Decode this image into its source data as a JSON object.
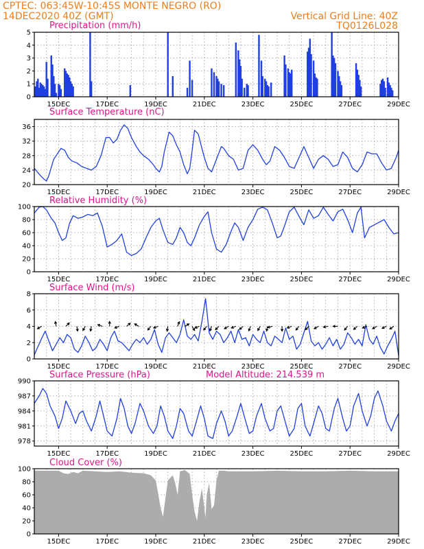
{
  "header": {
    "left_line1": "CPTEC:   063:45W-10:45S   MONTE NEGRO (RO)",
    "left_line2": "14DEC2020 40Z (GMT)",
    "right_line1": "Vertical Grid Line: 40Z",
    "right_line2": "TQ0126L028"
  },
  "colors": {
    "line": "#1f3fe0",
    "bar": "#1f3fe0",
    "cloud": "#acacac",
    "arrows": "#000000",
    "title": "#e0148c",
    "header": "#ef7d1a"
  },
  "x_axis": {
    "type": "time",
    "start": "14DEC2020 00Z",
    "end": "29DEC2020 00Z",
    "ticks": [
      {
        "day": 1,
        "label": "15DEC"
      },
      {
        "day": 3,
        "label": "17DEC"
      },
      {
        "day": 5,
        "label": "19DEC"
      },
      {
        "day": 7,
        "label": "21DEC"
      },
      {
        "day": 9,
        "label": "23DEC"
      },
      {
        "day": 11,
        "label": "25DEC"
      },
      {
        "day": 13,
        "label": "27DEC"
      },
      {
        "day": 15,
        "label": "29DEC"
      }
    ],
    "vertical_grid": "dashed, every 12 h"
  },
  "chart_data": [
    {
      "type": "bar",
      "title": "Precipitation (mm/h)",
      "ylim": [
        0,
        5
      ],
      "yticks": [
        "0",
        "1",
        "2",
        "3",
        "4",
        "5"
      ],
      "x_unit": "days since 14DEC2020 00Z",
      "x": [
        0.05,
        0.1,
        0.15,
        0.2,
        0.25,
        0.3,
        0.35,
        0.4,
        0.45,
        0.5,
        0.55,
        0.7,
        0.75,
        0.8,
        0.85,
        0.9,
        1.0,
        1.05,
        1.1,
        1.25,
        1.3,
        1.35,
        1.4,
        1.45,
        1.5,
        1.55,
        1.6,
        2.3,
        2.35,
        3.95,
        5.5,
        5.7,
        6.3,
        6.4,
        6.5,
        7.3,
        7.4,
        7.5,
        7.55,
        7.6,
        7.7,
        7.8,
        8.3,
        8.4,
        8.45,
        8.5,
        8.55,
        8.65,
        8.75,
        8.8,
        9.25,
        9.35,
        9.4,
        9.5,
        9.55,
        9.6,
        9.65,
        9.75,
        10.3,
        10.35,
        10.45,
        10.5,
        10.55,
        10.6,
        11.25,
        11.3,
        11.35,
        11.4,
        11.5,
        11.55,
        11.6,
        11.65,
        12.25,
        12.3,
        12.35,
        12.4,
        12.5,
        12.55,
        12.6,
        12.65,
        13.25,
        13.3,
        13.35,
        13.4,
        13.45,
        14.25,
        14.3,
        14.35,
        14.4,
        14.45,
        14.55,
        14.6,
        14.65,
        14.7,
        14.75
      ],
      "values": [
        0.8,
        1.2,
        1.4,
        0.7,
        1.1,
        1.0,
        0.9,
        0.8,
        0.6,
        2.7,
        1.4,
        3.2,
        2.5,
        1.6,
        1.0,
        0.3,
        1.0,
        0.9,
        0.6,
        2.2,
        2.0,
        1.8,
        1.7,
        1.5,
        1.2,
        1.0,
        0.8,
        5.0,
        1.2,
        0.9,
        5.0,
        1.6,
        0.7,
        2.8,
        1.3,
        2.2,
        1.9,
        1.6,
        1.4,
        1.2,
        1.0,
        0.9,
        4.2,
        3.6,
        2.9,
        2.4,
        1.4,
        0.7,
        1.0,
        0.9,
        4.8,
        2.8,
        1.6,
        1.4,
        1.2,
        0.9,
        0.8,
        1.1,
        3.2,
        2.5,
        2.2,
        1.9,
        1.8,
        2.1,
        3.5,
        3.8,
        4.5,
        3.3,
        2.8,
        1.8,
        1.5,
        1.4,
        5.0,
        3.2,
        3.0,
        2.6,
        2.0,
        1.6,
        1.2,
        0.9,
        2.6,
        2.1,
        1.7,
        1.3,
        0.8,
        1.0,
        1.3,
        1.4,
        1.2,
        0.7,
        1.5,
        1.1,
        0.9,
        0.7,
        0.5
      ]
    },
    {
      "type": "line",
      "title": "Surface Temperature (nC)",
      "ylim": [
        20,
        38
      ],
      "yticks": [
        "20",
        "24",
        "28",
        "32",
        "36"
      ],
      "x_unit": "days since 14DEC2020 00Z",
      "x": [
        0.0,
        0.25,
        0.4,
        0.5,
        0.6,
        0.8,
        1.1,
        1.25,
        1.4,
        1.55,
        1.75,
        1.95,
        2.15,
        2.35,
        2.55,
        2.75,
        2.95,
        3.1,
        3.25,
        3.4,
        3.55,
        3.7,
        3.85,
        4.0,
        4.2,
        4.35,
        4.5,
        4.7,
        4.9,
        5.0,
        5.15,
        5.25,
        5.35,
        5.55,
        5.7,
        5.85,
        6.0,
        6.15,
        6.3,
        6.4,
        6.5,
        6.6,
        6.75,
        6.9,
        7.0,
        7.15,
        7.3,
        7.5,
        7.7,
        7.8,
        8.0,
        8.2,
        8.4,
        8.6,
        8.8,
        9.0,
        9.2,
        9.4,
        9.55,
        9.7,
        9.9,
        10.1,
        10.3,
        10.5,
        10.7,
        10.9,
        11.1,
        11.3,
        11.5,
        11.7,
        11.9,
        12.1,
        12.3,
        12.5,
        12.7,
        12.9,
        13.1,
        13.3,
        13.5,
        13.7,
        13.9,
        14.1,
        14.3,
        14.5,
        14.7,
        14.9,
        15.0
      ],
      "values": [
        24.5,
        22.5,
        21.5,
        21.0,
        22.5,
        27.0,
        30.0,
        29.5,
        27.5,
        26.5,
        26.0,
        25.0,
        24.5,
        24.0,
        25.0,
        28.0,
        33.0,
        33.0,
        31.5,
        32.5,
        35.0,
        36.5,
        35.5,
        33.0,
        30.5,
        29.0,
        28.0,
        27.0,
        25.5,
        24.5,
        23.5,
        25.0,
        29.0,
        34.5,
        33.5,
        31.0,
        29.0,
        25.5,
        23.0,
        24.5,
        29.5,
        35.0,
        34.0,
        30.0,
        27.5,
        24.5,
        23.5,
        27.0,
        30.5,
        30.0,
        28.0,
        27.0,
        24.0,
        24.5,
        29.5,
        31.0,
        29.5,
        27.0,
        25.5,
        26.5,
        30.5,
        29.5,
        27.5,
        25.0,
        24.5,
        27.5,
        30.5,
        27.5,
        24.5,
        27.0,
        28.0,
        27.0,
        25.0,
        25.5,
        29.0,
        27.5,
        24.5,
        23.5,
        25.5,
        29.0,
        28.5,
        28.5,
        26.0,
        24.0,
        24.5,
        27.5,
        29.5
      ]
    },
    {
      "type": "line",
      "title": "Relative Humidity (%)",
      "ylim": [
        0,
        100
      ],
      "yticks": [
        "0",
        "20",
        "40",
        "60",
        "80",
        "100"
      ],
      "x_unit": "days since 14DEC2020 00Z",
      "x": [
        0.0,
        0.2,
        0.35,
        0.5,
        0.7,
        0.85,
        1.0,
        1.15,
        1.3,
        1.45,
        1.6,
        1.8,
        2.0,
        2.2,
        2.4,
        2.6,
        2.8,
        3.0,
        3.2,
        3.4,
        3.6,
        3.8,
        4.0,
        4.2,
        4.4,
        4.6,
        4.8,
        5.0,
        5.15,
        5.3,
        5.5,
        5.7,
        5.85,
        6.0,
        6.15,
        6.3,
        6.45,
        6.6,
        6.8,
        7.0,
        7.15,
        7.3,
        7.5,
        7.7,
        7.9,
        8.1,
        8.25,
        8.4,
        8.6,
        8.8,
        9.0,
        9.2,
        9.4,
        9.6,
        9.8,
        10.0,
        10.15,
        10.3,
        10.5,
        10.7,
        10.9,
        11.1,
        11.3,
        11.5,
        11.7,
        11.9,
        12.1,
        12.3,
        12.5,
        12.7,
        12.9,
        13.1,
        13.3,
        13.45,
        13.6,
        13.8,
        14.0,
        14.2,
        14.4,
        14.6,
        14.8,
        15.0
      ],
      "values": [
        90,
        99,
        100,
        95,
        82,
        75,
        60,
        48,
        52,
        74,
        86,
        82,
        84,
        88,
        86,
        90,
        70,
        38,
        42,
        48,
        58,
        30,
        25,
        28,
        35,
        52,
        68,
        78,
        82,
        64,
        45,
        42,
        52,
        68,
        60,
        45,
        40,
        52,
        72,
        85,
        92,
        60,
        35,
        30,
        42,
        62,
        75,
        68,
        48,
        68,
        80,
        96,
        99,
        95,
        75,
        52,
        55,
        70,
        92,
        99,
        85,
        72,
        95,
        82,
        86,
        99,
        88,
        78,
        92,
        96,
        80,
        60,
        90,
        99,
        52,
        68,
        72,
        76,
        80,
        68,
        58,
        60
      ]
    },
    {
      "type": "line",
      "title": "Surface Wind (m/s)",
      "ylim": [
        0,
        8
      ],
      "yticks": [
        "0",
        "2",
        "4",
        "6",
        "8"
      ],
      "x_unit": "days since 14DEC2020 00Z",
      "x": [
        0.0,
        0.15,
        0.3,
        0.45,
        0.6,
        0.75,
        0.9,
        1.05,
        1.2,
        1.35,
        1.5,
        1.65,
        1.8,
        1.95,
        2.1,
        2.25,
        2.4,
        2.55,
        2.7,
        2.85,
        3.0,
        3.15,
        3.3,
        3.45,
        3.6,
        3.75,
        3.9,
        4.05,
        4.2,
        4.35,
        4.5,
        4.65,
        4.8,
        4.95,
        5.1,
        5.25,
        5.4,
        5.55,
        5.7,
        5.85,
        6.0,
        6.15,
        6.3,
        6.45,
        6.6,
        6.75,
        6.9,
        7.05,
        7.2,
        7.35,
        7.5,
        7.65,
        7.8,
        7.95,
        8.1,
        8.25,
        8.4,
        8.55,
        8.7,
        8.85,
        9.0,
        9.15,
        9.3,
        9.45,
        9.6,
        9.75,
        9.9,
        10.05,
        10.2,
        10.35,
        10.5,
        10.65,
        10.8,
        10.95,
        11.1,
        11.25,
        11.4,
        11.55,
        11.7,
        11.85,
        12.0,
        12.15,
        12.3,
        12.45,
        12.6,
        12.75,
        12.9,
        13.05,
        13.2,
        13.35,
        13.5,
        13.65,
        13.8,
        13.95,
        14.1,
        14.25,
        14.4,
        14.55,
        14.7,
        14.85,
        15.0
      ],
      "values": [
        0.5,
        1.5,
        2.5,
        3.4,
        2.2,
        1.0,
        1.8,
        2.6,
        2.0,
        3.0,
        2.6,
        1.2,
        0.8,
        1.6,
        2.8,
        2.0,
        1.0,
        1.4,
        2.4,
        1.8,
        1.0,
        2.6,
        3.4,
        2.2,
        2.0,
        1.5,
        1.0,
        1.8,
        2.4,
        2.0,
        2.6,
        1.8,
        2.4,
        3.6,
        1.8,
        0.8,
        2.6,
        3.2,
        2.6,
        2.0,
        3.0,
        4.8,
        2.8,
        2.4,
        3.0,
        2.2,
        4.6,
        7.4,
        3.2,
        2.4,
        3.4,
        3.0,
        2.0,
        2.6,
        3.4,
        2.0,
        3.6,
        2.4,
        2.6,
        1.6,
        3.0,
        2.4,
        2.0,
        3.4,
        2.0,
        1.6,
        2.8,
        2.4,
        2.0,
        3.8,
        2.4,
        2.8,
        1.2,
        1.8,
        3.2,
        4.6,
        2.2,
        1.6,
        2.0,
        1.2,
        1.8,
        2.6,
        1.6,
        2.4,
        1.2,
        1.8,
        3.2,
        2.6,
        1.8,
        2.4,
        1.6,
        4.2,
        2.4,
        1.8,
        2.8,
        1.4,
        0.6,
        1.6,
        2.4,
        3.4,
        0.4
      ],
      "wind_arrows": {
        "level": 4,
        "x": [
          0.3,
          0.9,
          1.3,
          1.75,
          2.1,
          2.35,
          2.8,
          3.1,
          3.5,
          3.8,
          4.3,
          4.8,
          5.1,
          5.5,
          5.9,
          6.2,
          6.5,
          6.8,
          7.1,
          7.3,
          7.6,
          8.0,
          8.3,
          8.6,
          8.9,
          9.3,
          9.6,
          9.8,
          10.2,
          10.6,
          10.9,
          11.3,
          11.7,
          12.1,
          12.5,
          12.9,
          13.3,
          13.7,
          14.1,
          14.5,
          14.8
        ],
        "direction_deg": [
          210,
          100,
          45,
          280,
          240,
          260,
          160,
          90,
          200,
          40,
          150,
          230,
          200,
          260,
          70,
          30,
          300,
          200,
          230,
          250,
          225,
          210,
          200,
          220,
          250,
          240,
          260,
          195,
          270,
          200,
          230,
          225,
          210,
          190,
          180,
          230,
          220,
          200,
          210,
          205,
          215
        ]
      }
    },
    {
      "type": "line",
      "title": "Surface Pressure (hPa)",
      "annotation": "Model Altitude: 214.539  m",
      "ylim": [
        977,
        990
      ],
      "yticks": [
        "978",
        "981",
        "984",
        "987",
        "990"
      ],
      "x_unit": "days since 14DEC2020 00Z",
      "x": [
        0.0,
        0.2,
        0.35,
        0.5,
        0.65,
        0.85,
        1.0,
        1.15,
        1.3,
        1.5,
        1.7,
        1.85,
        2.0,
        2.15,
        2.35,
        2.55,
        2.7,
        2.85,
        3.0,
        3.2,
        3.4,
        3.55,
        3.7,
        3.85,
        4.0,
        4.15,
        4.35,
        4.5,
        4.7,
        4.9,
        5.05,
        5.2,
        5.35,
        5.5,
        5.7,
        5.85,
        6.0,
        6.15,
        6.35,
        6.5,
        6.65,
        6.85,
        7.0,
        7.15,
        7.35,
        7.5,
        7.7,
        7.85,
        8.0,
        8.15,
        8.35,
        8.5,
        8.7,
        8.85,
        9.0,
        9.15,
        9.35,
        9.5,
        9.7,
        9.85,
        10.0,
        10.15,
        10.35,
        10.5,
        10.7,
        10.85,
        11.0,
        11.15,
        11.35,
        11.5,
        11.7,
        11.85,
        12.0,
        12.15,
        12.35,
        12.5,
        12.7,
        12.85,
        13.0,
        13.15,
        13.35,
        13.5,
        13.7,
        13.85,
        14.0,
        14.15,
        14.35,
        14.5,
        14.7,
        14.85,
        15.0
      ],
      "values": [
        985.5,
        987.0,
        988.5,
        987.5,
        985.0,
        983.0,
        980.5,
        982.5,
        986.0,
        984.0,
        981.5,
        983.5,
        984.0,
        982.0,
        980.0,
        983.0,
        986.0,
        983.0,
        980.0,
        979.0,
        982.5,
        986.5,
        984.5,
        981.0,
        979.5,
        981.5,
        985.5,
        984.0,
        981.0,
        979.5,
        981.0,
        985.0,
        983.0,
        980.0,
        978.5,
        981.0,
        984.5,
        983.5,
        980.0,
        979.0,
        981.5,
        985.0,
        982.5,
        979.0,
        978.5,
        981.5,
        984.0,
        982.0,
        979.0,
        980.0,
        983.0,
        985.5,
        982.0,
        979.5,
        980.0,
        983.0,
        985.5,
        982.5,
        980.0,
        980.5,
        984.0,
        985.0,
        981.5,
        979.0,
        980.5,
        984.5,
        985.5,
        981.0,
        979.0,
        981.5,
        985.0,
        983.5,
        980.5,
        980.0,
        984.5,
        986.5,
        982.5,
        980.0,
        981.0,
        985.0,
        987.5,
        984.0,
        981.0,
        983.0,
        986.5,
        988.0,
        985.0,
        982.0,
        980.0,
        982.0,
        983.5
      ]
    },
    {
      "type": "area",
      "title": "Cloud Cover (%)",
      "ylim": [
        0,
        100
      ],
      "yticks": [
        "0",
        "20",
        "40",
        "60",
        "80",
        "100"
      ],
      "x_unit": "days since 14DEC2020 00Z",
      "x": [
        0.0,
        1.0,
        1.2,
        1.4,
        1.6,
        1.8,
        2.0,
        2.5,
        3.0,
        3.5,
        4.0,
        4.5,
        4.8,
        5.0,
        5.1,
        5.2,
        5.3,
        5.4,
        5.5,
        5.6,
        5.7,
        5.8,
        5.9,
        6.0,
        6.2,
        6.4,
        6.5,
        6.6,
        6.7,
        6.8,
        6.9,
        7.0,
        7.05,
        7.1,
        7.2,
        7.3,
        7.4,
        7.5,
        7.6,
        7.8,
        8.0,
        9.0,
        10.0,
        11.0,
        12.0,
        13.0,
        14.0,
        15.0
      ],
      "values": [
        97,
        97,
        93,
        92,
        95,
        93,
        97,
        96,
        95,
        96,
        94,
        93,
        90,
        82,
        62,
        40,
        26,
        55,
        82,
        86,
        90,
        78,
        60,
        96,
        98,
        92,
        60,
        34,
        20,
        50,
        70,
        40,
        25,
        60,
        78,
        38,
        44,
        82,
        97,
        97,
        96,
        96,
        97,
        96,
        96,
        97,
        96,
        96
      ]
    }
  ]
}
